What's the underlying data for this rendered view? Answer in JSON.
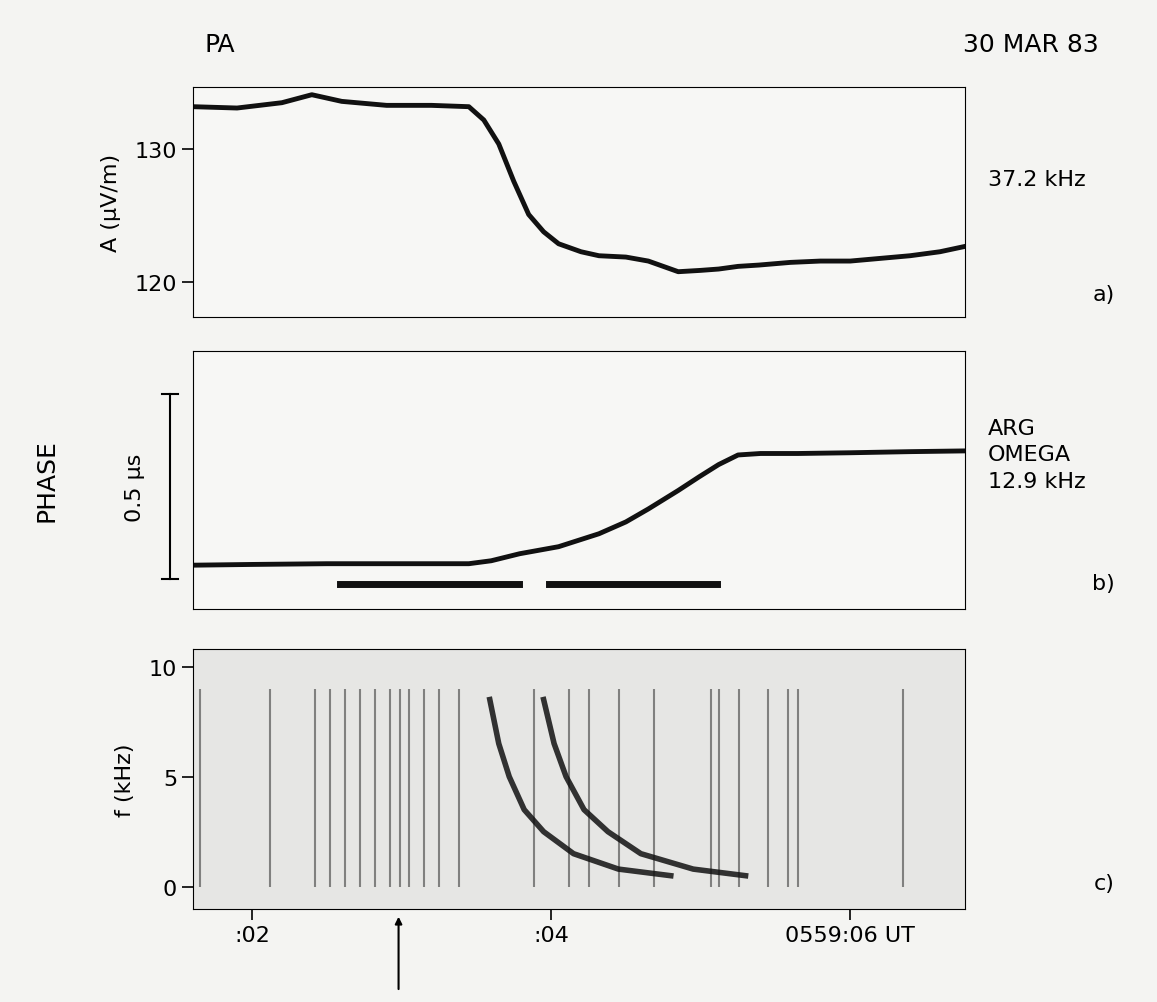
{
  "station": "PA",
  "date": "30 MAR 83",
  "chart_data": [
    {
      "type": "line",
      "ylabel": "A (μV/m)",
      "side_label": "37.2 kHz",
      "panel_label": "a)",
      "xlim": [
        1.607,
        6.767
      ],
      "ylim": [
        117.4,
        134.66
      ],
      "yticks": [
        120,
        130
      ],
      "tick_labels": "y",
      "color": "#111111",
      "x": [
        1.607,
        1.9,
        2.2,
        2.4,
        2.6,
        2.9,
        3.2,
        3.45,
        3.55,
        3.65,
        3.75,
        3.85,
        3.95,
        4.05,
        4.2,
        4.32,
        4.5,
        4.65,
        4.85,
        5.0,
        5.12,
        5.25,
        5.39,
        5.6,
        5.8,
        6.0,
        6.2,
        6.4,
        6.6,
        6.767
      ],
      "values": [
        133.2,
        133.1,
        133.5,
        134.1,
        133.6,
        133.3,
        133.3,
        133.2,
        132.2,
        130.4,
        127.6,
        125.1,
        123.8,
        122.9,
        122.3,
        122.0,
        121.9,
        121.6,
        120.8,
        120.9,
        121.0,
        121.2,
        121.3,
        121.5,
        121.6,
        121.6,
        121.8,
        122.0,
        122.3,
        122.7
      ]
    },
    {
      "type": "line",
      "ylabel": "PHASE",
      "side_label": "ARG\nOMEGA\n12.9 kHz",
      "panel_label": "b)",
      "xlim": [
        1.607,
        6.767
      ],
      "ylim": [
        0,
        0.697
      ],
      "tick_labels": false,
      "color": "#111111",
      "scale_bar": {
        "from": 0.08,
        "to": 0.58,
        "label": "0.5 μs"
      },
      "x": [
        1.607,
        2.0,
        2.5,
        3.0,
        3.45,
        3.6,
        3.79,
        4.05,
        4.32,
        4.5,
        4.65,
        4.85,
        4.99,
        5.12,
        5.25,
        5.4,
        5.65,
        6.0,
        6.4,
        6.767
      ],
      "values": [
        0.118,
        0.12,
        0.122,
        0.122,
        0.122,
        0.13,
        0.149,
        0.168,
        0.203,
        0.235,
        0.27,
        0.32,
        0.357,
        0.39,
        0.416,
        0.42,
        0.42,
        0.422,
        0.425,
        0.427
      ],
      "segments": [
        {
          "x": [
            2.587,
            3.787
          ],
          "values": [
            0.068,
            0.068
          ]
        },
        {
          "x": [
            3.987,
            5.107
          ],
          "values": [
            0.068,
            0.068
          ]
        }
      ]
    },
    {
      "type": "spectrogram",
      "ylabel": "f (kHz)",
      "panel_label": "c)",
      "xlim": [
        1.607,
        6.767
      ],
      "ylim": [
        -1.0,
        10.8
      ],
      "yticks": [
        0,
        5,
        10
      ],
      "xticks": [
        {
          "value": 2,
          "label": ":02"
        },
        {
          "value": 4,
          "label": ":04"
        },
        {
          "value": 6,
          "label": "0559:06 UT"
        }
      ],
      "color": "#111111",
      "event_time": 2.98,
      "sferic_range": [
        0,
        9
      ],
      "sferics": [
        1.653,
        2.12,
        2.42,
        2.52,
        2.62,
        2.72,
        2.82,
        2.92,
        2.987,
        3.053,
        3.153,
        3.253,
        3.387,
        3.887,
        4.12,
        4.253,
        4.453,
        4.687,
        5.067,
        5.12,
        5.253,
        5.453,
        5.587,
        5.653,
        6.353
      ],
      "whistlers": [
        {
          "x": [
            3.59,
            3.65,
            3.72,
            3.82,
            3.95,
            4.15,
            4.45,
            4.8
          ],
          "values": [
            8.5,
            6.5,
            5.0,
            3.5,
            2.5,
            1.5,
            0.8,
            0.5
          ]
        },
        {
          "x": [
            3.95,
            4.02,
            4.1,
            4.22,
            4.38,
            4.6,
            4.95,
            5.3
          ],
          "values": [
            8.5,
            6.5,
            5.0,
            3.5,
            2.5,
            1.5,
            0.8,
            0.5
          ]
        }
      ]
    }
  ]
}
